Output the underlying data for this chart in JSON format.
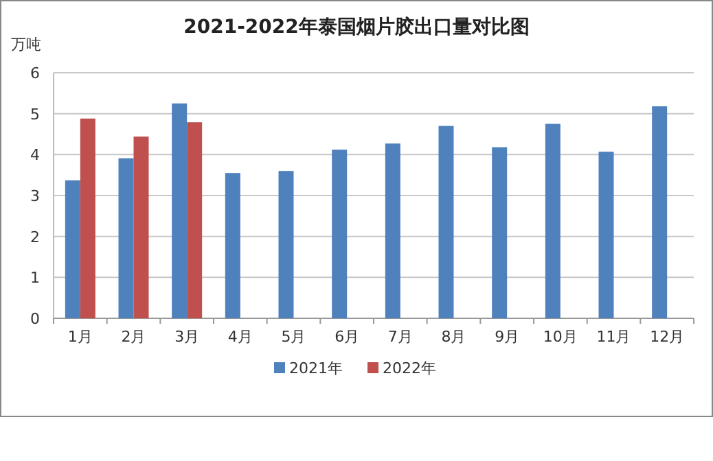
{
  "chart_data": {
    "type": "bar",
    "title": "2021-2022年泰国烟片胶出口量对比图",
    "ylabel": "万吨",
    "categories": [
      "1月",
      "2月",
      "3月",
      "4月",
      "5月",
      "6月",
      "7月",
      "8月",
      "9月",
      "10月",
      "11月",
      "12月"
    ],
    "series": [
      {
        "name": "2021年",
        "color": "#4f81bd",
        "values": [
          3.37,
          3.91,
          5.25,
          3.55,
          3.6,
          4.12,
          4.27,
          4.7,
          4.18,
          4.75,
          4.07,
          5.18
        ]
      },
      {
        "name": "2022年",
        "color": "#c0504d",
        "values": [
          4.88,
          4.44,
          4.79,
          null,
          null,
          null,
          null,
          null,
          null,
          null,
          null,
          null
        ]
      }
    ],
    "ylim": [
      0,
      6
    ],
    "yticks": [
      0,
      1,
      2,
      3,
      4,
      5,
      6
    ],
    "grid": "y",
    "legend": "bottom"
  }
}
